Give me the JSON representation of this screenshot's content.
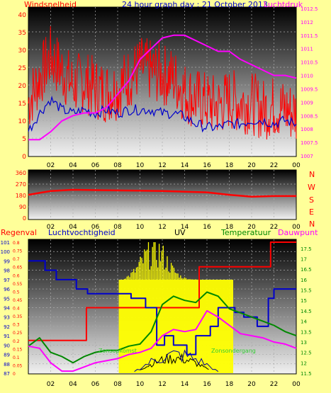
{
  "title": "24 hour graph day : 21 October 2013",
  "colors": {
    "bg": "#ffff99",
    "red": "#ff0000",
    "blue": "#0000cc",
    "magenta": "#ff00ff",
    "green": "#008800",
    "yellow": "#ffff00",
    "darkblue": "#000099",
    "black": "#000000"
  },
  "chart_data": [
    {
      "type": "line",
      "panel": "wind-pressure",
      "left_label": "Windsnelheid",
      "right_label": "Luchtdruk",
      "x_ticks": [
        "02",
        "04",
        "06",
        "08",
        "10",
        "12",
        "14",
        "16",
        "18",
        "20",
        "22",
        "00"
      ],
      "y_left_ticks": [
        "0",
        "5",
        "10",
        "15",
        "20",
        "25",
        "30",
        "35",
        "40"
      ],
      "y_left_range": [
        0,
        40
      ],
      "y_right_ticks": [
        "1007",
        "1007.5",
        "1008",
        "1008.5",
        "1009",
        "1009.5",
        "1010",
        "1010.5",
        "1011",
        "1011.5",
        "1012",
        "1012.5"
      ],
      "y_right_range": [
        1007,
        1012.5
      ],
      "series": [
        {
          "color": "#ff0000",
          "hours": [
            0,
            1,
            2,
            3,
            4,
            5,
            6,
            7,
            8,
            9,
            10,
            11,
            12,
            13,
            14,
            15,
            16,
            17,
            18,
            19,
            20,
            21,
            22,
            23,
            24
          ],
          "values": [
            15,
            22,
            28,
            24,
            20,
            21,
            19,
            18,
            19,
            22,
            25,
            24,
            23,
            22,
            18,
            16,
            15,
            14,
            16,
            15,
            15,
            13,
            14,
            13,
            12
          ]
        },
        {
          "color": "#0000cc",
          "hours": [
            0,
            1,
            2,
            3,
            4,
            5,
            6,
            7,
            8,
            9,
            10,
            11,
            12,
            13,
            14,
            15,
            16,
            17,
            18,
            19,
            20,
            21,
            22,
            23,
            24
          ],
          "values": [
            7,
            12,
            16,
            13,
            12,
            13,
            12,
            13,
            12,
            13,
            13,
            13,
            12,
            12,
            11,
            9,
            8,
            8,
            9,
            9,
            10,
            10,
            9,
            10,
            9
          ]
        },
        {
          "color": "#ff00ff",
          "hours": [
            0,
            1,
            2,
            3,
            4,
            5,
            6,
            7,
            8,
            9,
            10,
            11,
            12,
            13,
            14,
            15,
            16,
            17,
            18,
            19,
            20,
            21,
            22,
            23,
            24
          ],
          "values": [
            1007.6,
            1007.6,
            1007.9,
            1008.3,
            1008.5,
            1008.6,
            1008.6,
            1008.8,
            1009.3,
            1009.8,
            1010.6,
            1011.0,
            1011.4,
            1011.5,
            1011.5,
            1011.3,
            1011.1,
            1010.9,
            1010.9,
            1010.6,
            1010.4,
            1010.2,
            1010.0,
            1010.0,
            1009.9
          ]
        }
      ]
    },
    {
      "type": "line",
      "panel": "wind-direction",
      "y_left_ticks": [
        "0",
        "90",
        "180",
        "270",
        "360"
      ],
      "y_left_range": [
        0,
        360
      ],
      "y_right_ticks": [
        "N",
        "W",
        "S",
        "E",
        "N"
      ],
      "series": [
        {
          "color": "#ff0000",
          "hours": [
            0,
            1,
            2,
            3,
            4,
            6,
            8,
            10,
            12,
            14,
            16,
            18,
            20,
            22,
            24
          ],
          "values": [
            185,
            200,
            215,
            220,
            225,
            222,
            220,
            218,
            215,
            210,
            205,
            185,
            170,
            175,
            175
          ]
        }
      ]
    },
    {
      "type": "line",
      "panel": "rain-humidity-uv-temp",
      "labels": {
        "rain": "Regenval",
        "humidity": "Luchtvochtigheid",
        "uv": "UV",
        "temp": "Temperatuur",
        "dew": "Dauwpunt",
        "sunrise": "Zonsopkomst",
        "sunset": "Zonsondergang"
      },
      "y_left_ticks": [
        "87",
        "88",
        "89",
        "90",
        "91",
        "92",
        "93",
        "94",
        "95",
        "96",
        "97",
        "98",
        "99",
        "100",
        "101"
      ],
      "y_left_range": [
        87,
        101
      ],
      "y_mid_ticks": [
        "0",
        "0.05",
        "0.1",
        "0.15",
        "0.2",
        "0.25",
        "0.3",
        "0.35",
        "0.4",
        "0.45",
        "0.5",
        "0.55",
        "0.6",
        "0.65",
        "0.7",
        "0.75",
        "0.8"
      ],
      "y_mid_range": [
        0,
        0.8
      ],
      "y_right_ticks": [
        "11.5",
        "12",
        "12.5",
        "13",
        "13.5",
        "14",
        "14.5",
        "15",
        "15.5",
        "16",
        "16.5",
        "17",
        "17.5"
      ],
      "y_right_range": [
        11.5,
        17.8
      ],
      "sunrise_hour": 8.1,
      "sunset_hour": 18.35,
      "series": [
        {
          "name": "Regenval",
          "color": "#ff0000",
          "hours": [
            0,
            5.2,
            5.2,
            15.3,
            15.3,
            21.7,
            21.7,
            24
          ],
          "values": [
            0.2,
            0.2,
            0.4,
            0.4,
            0.65,
            0.65,
            0.8,
            0.8
          ]
        },
        {
          "name": "Luchtvochtigheid",
          "color": "#0000cc",
          "hours": [
            0,
            1.5,
            1.5,
            2.5,
            2.5,
            4.3,
            4.3,
            5.3,
            5.3,
            9.2,
            9.2,
            10.5,
            10.5,
            11.5,
            11.5,
            12.2,
            12.2,
            13,
            13,
            14.2,
            14.2,
            15,
            15,
            16.3,
            16.3,
            17,
            17,
            18.5,
            18.5,
            19.3,
            19.3,
            20.5,
            20.5,
            21.5,
            21.5,
            22,
            22,
            24
          ],
          "values": [
            99,
            99,
            98,
            98,
            97,
            97,
            96,
            96,
            95.5,
            95.5,
            95,
            95,
            94,
            94,
            90,
            90,
            91,
            91,
            90,
            90,
            89,
            89,
            91,
            91,
            92,
            92,
            94,
            94,
            93.5,
            93.5,
            93,
            93,
            92,
            92,
            95,
            95,
            96,
            96
          ]
        },
        {
          "name": "Temperatuur",
          "color": "#008800",
          "hours": [
            0,
            1,
            2,
            3,
            4,
            5,
            6,
            7,
            8,
            9,
            10,
            11,
            12,
            13,
            14,
            15,
            16,
            17,
            18,
            19,
            20,
            21,
            22,
            23,
            24
          ],
          "values": [
            12.8,
            13.2,
            12.5,
            12.3,
            12.0,
            12.3,
            12.5,
            12.6,
            12.6,
            12.8,
            12.9,
            13.5,
            14.8,
            15.2,
            15.0,
            14.9,
            15.4,
            15.2,
            14.6,
            14.4,
            14.2,
            14.0,
            13.8,
            13.5,
            13.3
          ]
        },
        {
          "name": "Dauwpunt",
          "color": "#ff00ff",
          "hours": [
            0,
            1,
            2,
            3,
            4,
            5,
            6,
            7,
            8,
            9,
            10,
            11,
            12,
            13,
            14,
            15,
            16,
            17,
            18,
            19,
            20,
            21,
            22,
            23,
            24
          ],
          "values": [
            12.8,
            12.7,
            12.0,
            11.6,
            11.6,
            11.8,
            12.0,
            12.1,
            12.2,
            12.4,
            12.5,
            12.7,
            13.3,
            13.6,
            13.5,
            13.6,
            14.5,
            14.2,
            13.8,
            13.4,
            13.3,
            13.2,
            13.0,
            12.9,
            12.7
          ]
        }
      ]
    }
  ]
}
